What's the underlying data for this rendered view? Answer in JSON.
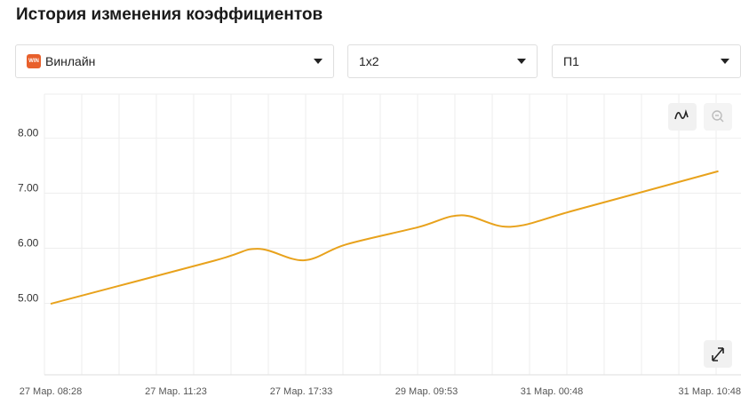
{
  "header": {
    "title": "История изменения коэффициентов"
  },
  "filters": [
    {
      "label": "Винлайн"
    },
    {
      "label": "1x2"
    },
    {
      "label": "П1"
    }
  ],
  "chart_data": {
    "type": "line",
    "categories": [
      "27 Мар. 08:28",
      "27 Мар. 11:23",
      "27 Мар. 17:33",
      "29 Мар. 09:53",
      "31 Мар. 00:48",
      "31 Мар. 10:48"
    ],
    "x": [
      0,
      1.3,
      1.65,
      2.02,
      2.36,
      2.93,
      3.28,
      3.67,
      4.2,
      5.33
    ],
    "series": [
      {
        "name": "П1",
        "color": "#e8a21c",
        "values": [
          4.99,
          5.77,
          5.99,
          5.78,
          6.07,
          6.38,
          6.6,
          6.39,
          6.7,
          7.4
        ]
      }
    ],
    "ylim": [
      3.7,
      8.8
    ],
    "yticks": [
      {
        "value": 5,
        "label": "5.00"
      },
      {
        "value": 6,
        "label": "6.00"
      },
      {
        "value": 7,
        "label": "7.00"
      },
      {
        "value": 8,
        "label": "8.00"
      }
    ],
    "grid": true
  }
}
